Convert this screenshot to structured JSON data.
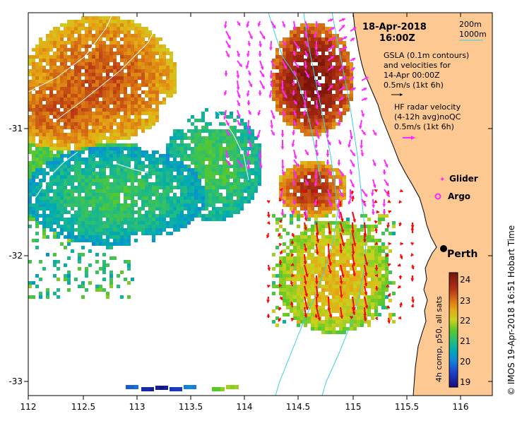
{
  "map": {
    "date": "18-Apr-2018",
    "time": "16:00Z",
    "legend_200m": "200m",
    "legend_1000m": "1000m",
    "gsla_lines": [
      "GSLA (0.1m contours)",
      "and velocities for",
      "14-Apr 00:00Z",
      "0.5m/s (1kt 6h)"
    ],
    "hf_lines": [
      "HF radar velocity",
      "(4-12h avg)noQC",
      "0.5m/s (1kt 6h)"
    ],
    "glider_label": "Glider",
    "argo_label": "Argo",
    "city_label": "Perth",
    "colorbar_title": "4h comp, p50, all sats",
    "colorbar_ticks": [
      "24",
      "23",
      "22",
      "21",
      "20",
      "19"
    ],
    "side_credit": "© IMOS 19-Apr-2018 16:51 Hobart Time",
    "x_ticks": [
      "112",
      "112.5",
      "113",
      "113.5",
      "114",
      "114.5",
      "115",
      "115.5",
      "116"
    ],
    "y_ticks": [
      "-31",
      "-32",
      "-33"
    ]
  },
  "colors": {
    "land": "#fdc892",
    "frame": "#000000",
    "isobath": "#3cd0e0",
    "hf_arrow": "#ff0000",
    "gsla_arrow": "#ff28ff",
    "warm": "#b8301f",
    "cool": "#00a0a0"
  }
}
